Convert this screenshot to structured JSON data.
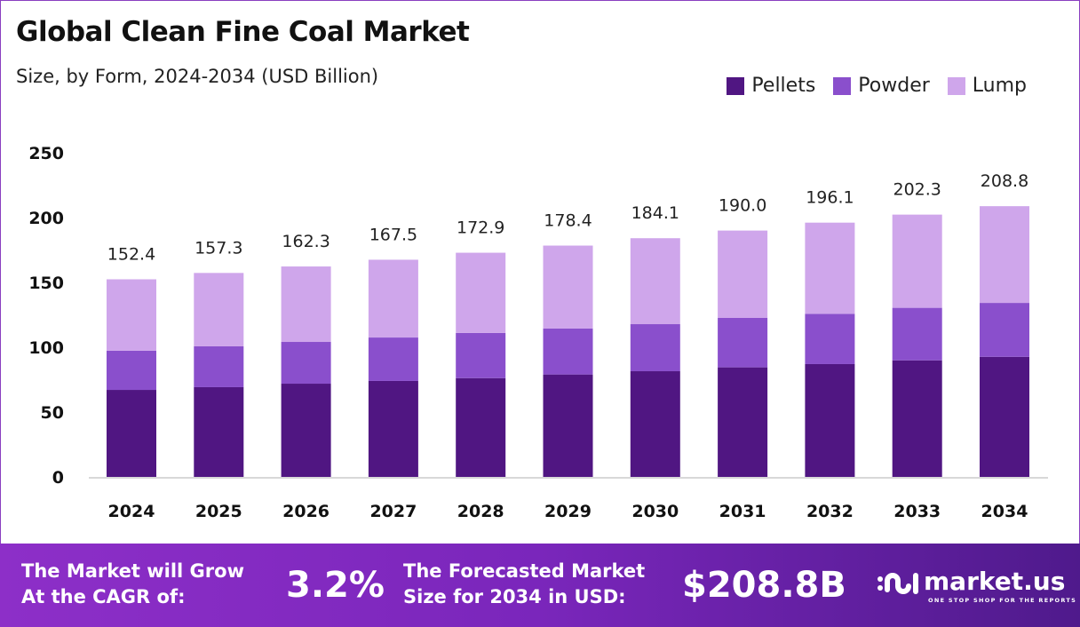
{
  "chart_data": {
    "type": "bar",
    "stacked": true,
    "title": "Global Clean Fine Coal Market",
    "subtitle": "Size, by Form, 2024-2034 (USD Billion)",
    "categories": [
      "2024",
      "2025",
      "2026",
      "2027",
      "2028",
      "2029",
      "2030",
      "2031",
      "2032",
      "2033",
      "2034"
    ],
    "series": [
      {
        "name": "Pellets",
        "color": "#501682",
        "values": [
          67.1,
          69.2,
          71.9,
          74.0,
          76.2,
          79.0,
          81.5,
          84.5,
          87.0,
          89.9,
          92.6
        ]
      },
      {
        "name": "Powder",
        "color": "#8a4fcc",
        "values": [
          30.2,
          31.5,
          32.2,
          33.5,
          34.8,
          35.4,
          36.3,
          38.1,
          38.8,
          40.5,
          41.6
        ]
      },
      {
        "name": "Lump",
        "color": "#cfa6eb",
        "values": [
          55.1,
          56.6,
          58.2,
          60.0,
          61.9,
          64.0,
          66.3,
          67.4,
          70.3,
          71.9,
          74.6
        ]
      }
    ],
    "totals": [
      "152.4",
      "157.3",
      "162.3",
      "167.5",
      "172.9",
      "178.4",
      "184.1",
      "190.0",
      "196.1",
      "202.3",
      "208.8"
    ],
    "yticks": [
      "0",
      "50",
      "100",
      "150",
      "200",
      "250"
    ],
    "ylim": [
      0,
      250
    ],
    "grid": false,
    "legend_position": "top-right",
    "xlabel": "",
    "ylabel": ""
  },
  "footer": {
    "cagr_label_1": "The Market will Grow",
    "cagr_label_2": "At the CAGR of:",
    "cagr_value": "3.2%",
    "forecast_label_1": "The Forecasted Market",
    "forecast_label_2": "Size for 2034 in USD:",
    "forecast_value": "$208.8B",
    "brand": "market.us",
    "tagline": "ONE STOP SHOP FOR THE REPORTS"
  }
}
